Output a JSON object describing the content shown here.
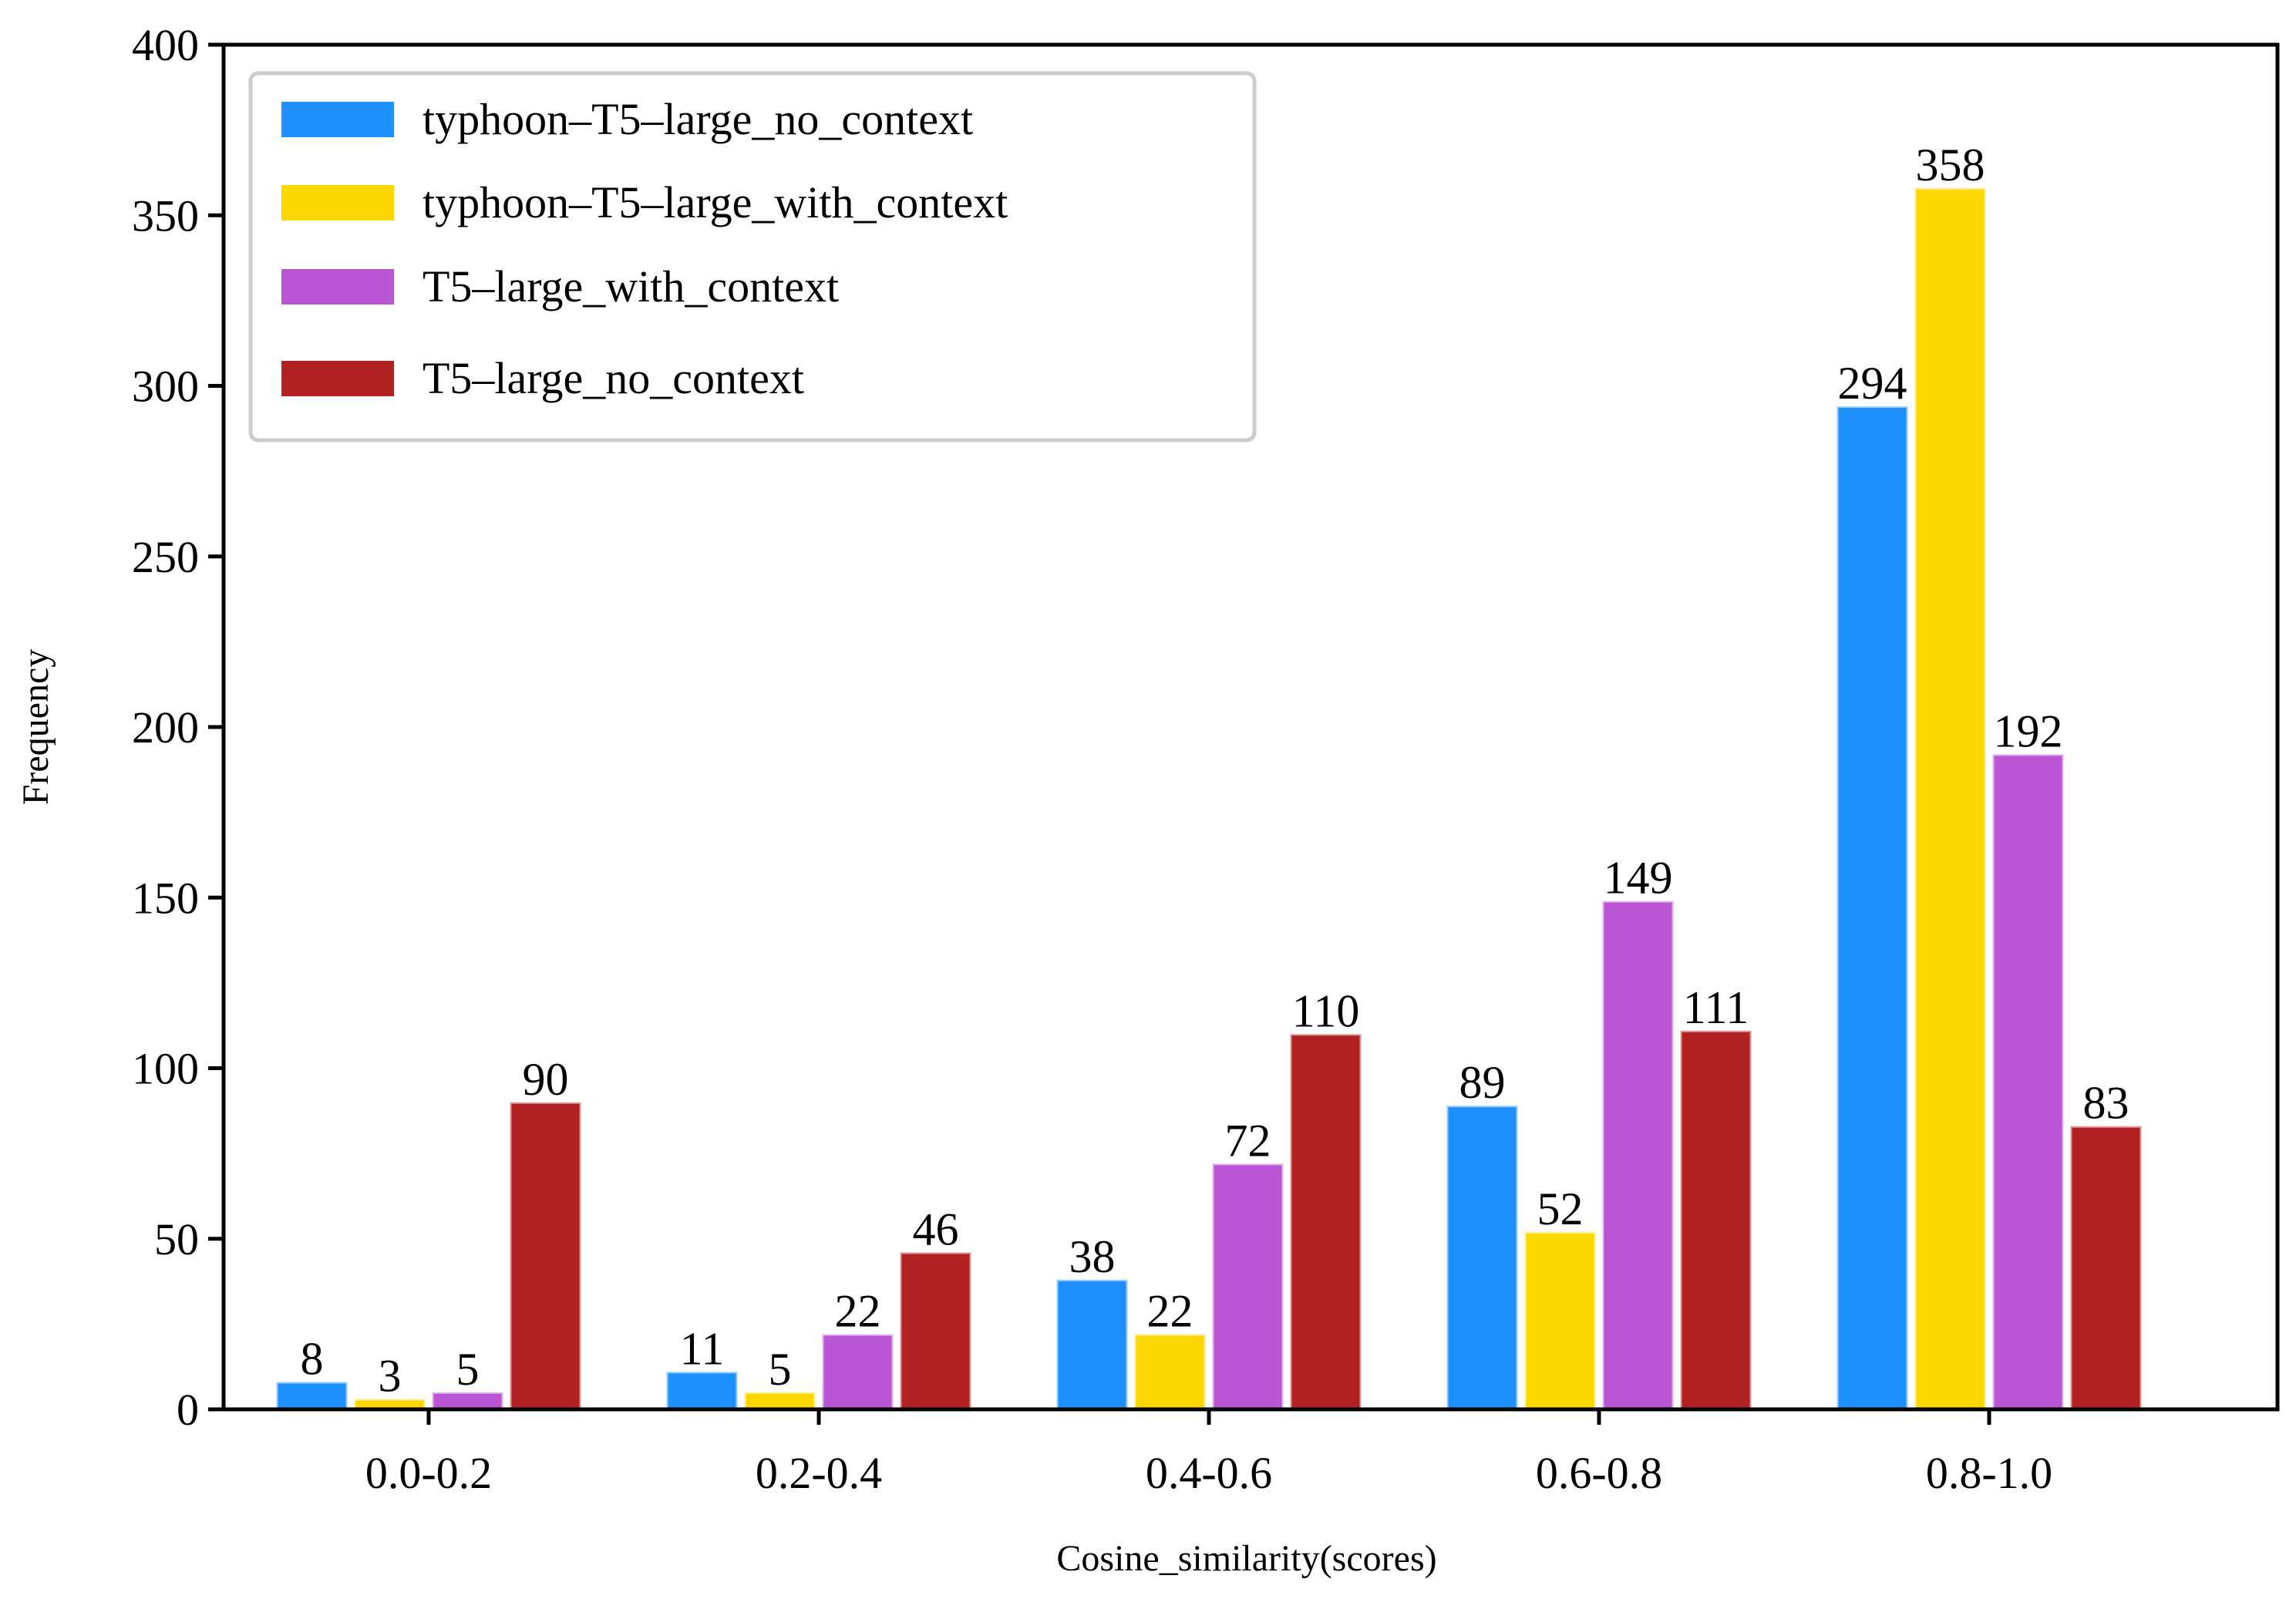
{
  "chart_data": {
    "type": "bar",
    "title": "",
    "xlabel": "Cosine_similarity(scores)",
    "ylabel": "Frequency",
    "ylim": [
      0,
      400
    ],
    "yticks": [
      0,
      50,
      100,
      150,
      200,
      250,
      300,
      350,
      400
    ],
    "categories": [
      "0.0-0.2",
      "0.2-0.4",
      "0.4-0.6",
      "0.6-0.8",
      "0.8-1.0"
    ],
    "series": [
      {
        "name": "typhoon–T5–large_no_context",
        "color": "#1E90FF",
        "values": [
          8,
          11,
          38,
          89,
          294
        ]
      },
      {
        "name": "typhoon–T5–large_with_context",
        "color": "#FFD700",
        "values": [
          3,
          5,
          22,
          52,
          358
        ]
      },
      {
        "name": "T5–large_with_context",
        "color": "#BA55D3",
        "values": [
          5,
          22,
          72,
          149,
          192
        ]
      },
      {
        "name": "T5–large_no_context",
        "color": "#B22222",
        "values": [
          90,
          46,
          110,
          111,
          83
        ]
      }
    ],
    "legend_position": "top-left",
    "grid": false
  }
}
